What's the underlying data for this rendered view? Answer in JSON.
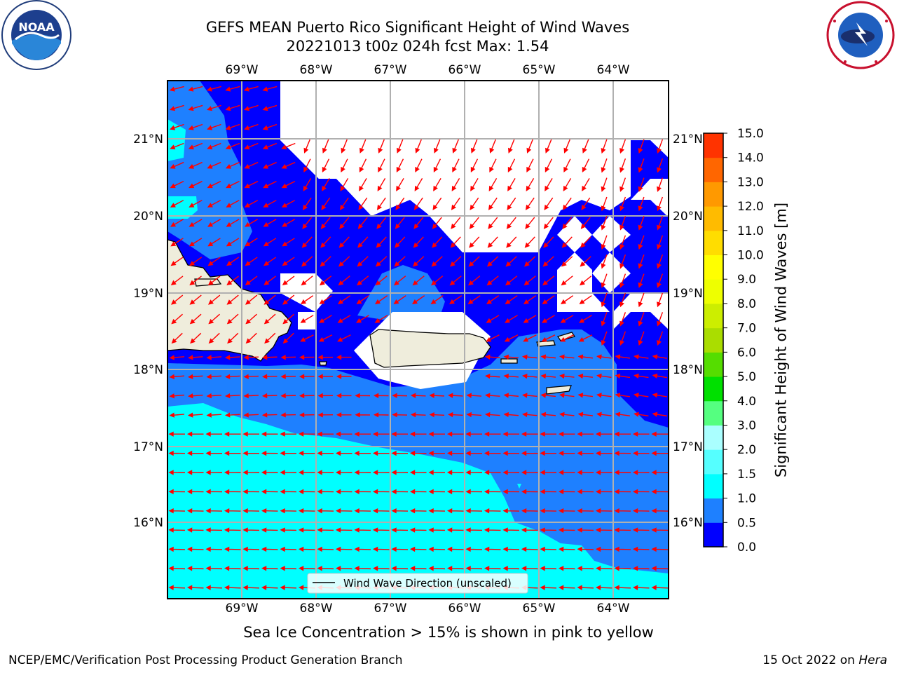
{
  "title_line1": "GEFS MEAN Puerto Rico Significant Height of Wind Waves",
  "title_line2": "20221013 t00z 024h fcst   Max: 1.54",
  "lon_labels": [
    "69°W",
    "68°W",
    "67°W",
    "66°W",
    "65°W",
    "64°W"
  ],
  "lat_labels": [
    "21°N",
    "20°N",
    "19°N",
    "18°N",
    "17°N",
    "16°N"
  ],
  "legend_text": "Wind Wave Direction (unscaled)",
  "colorbar": {
    "label": "Significant Height of Wind Waves [m]",
    "tick_labels": [
      "0.0",
      "0.5",
      "1.0",
      "1.5",
      "2.0",
      "3.0",
      "4.0",
      "5.0",
      "6.0",
      "7.0",
      "8.0",
      "9.0",
      "10.0",
      "11.0",
      "12.0",
      "13.0",
      "14.0",
      "15.0"
    ],
    "colors": [
      "#0000ff",
      "#1e80ff",
      "#00ffff",
      "#55ffff",
      "#aaffff",
      "#55ff80",
      "#00e000",
      "#55dd00",
      "#aadd00",
      "#ccee00",
      "#eeff00",
      "#ffff00",
      "#ffdd00",
      "#ffbb00",
      "#ff9900",
      "#ff6600",
      "#ff3300"
    ]
  },
  "sea_ice_note": "Sea Ice Concentration > 15% is shown in pink to yellow",
  "footer_left": "NCEP/EMC/Verification Post Processing Product Generation Branch",
  "footer_date": "15 Oct 2022 on ",
  "footer_machine": "Hera",
  "colors": {
    "land": "#efeddc",
    "arrow": "#ff0000",
    "grid": "#b0b0b0"
  }
}
